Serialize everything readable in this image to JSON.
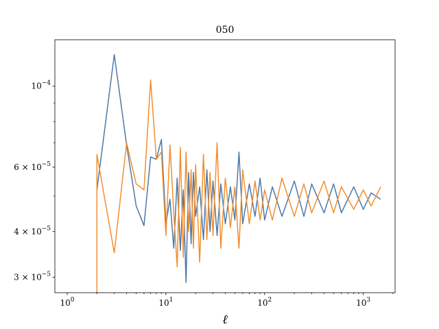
{
  "chart_data": {
    "type": "line",
    "title": "050",
    "xlabel": "ℓ",
    "ylabel": "",
    "xscale": "log",
    "yscale": "log",
    "xlim": [
      0.75,
      2100
    ],
    "ylim": [
      2.72e-05,
      0.000134
    ],
    "x_ticks": [
      {
        "value": 1,
        "label": "10",
        "exp": "0"
      },
      {
        "value": 10,
        "label": "10",
        "exp": "1"
      },
      {
        "value": 100,
        "label": "10",
        "exp": "2"
      },
      {
        "value": 1000,
        "label": "10",
        "exp": "3"
      }
    ],
    "y_ticks": [
      {
        "value": 0.0001,
        "label": "10",
        "exp": "−4"
      },
      {
        "value": 6e-05,
        "label": "6 × 10",
        "exp": "−5"
      },
      {
        "value": 4e-05,
        "label": "4 × 10",
        "exp": "−5"
      },
      {
        "value": 3e-05,
        "label": "3 × 10",
        "exp": "−5"
      }
    ],
    "series": [
      {
        "color": "#4c78a8",
        "x": [
          2,
          3,
          4,
          5,
          6,
          7,
          8,
          9,
          10,
          11,
          12,
          13,
          14,
          15,
          16,
          17,
          18,
          19,
          20,
          22,
          24,
          26,
          28,
          30,
          33,
          36,
          40,
          45,
          50,
          55,
          60,
          70,
          80,
          90,
          100,
          120,
          150,
          200,
          250,
          300,
          400,
          500,
          600,
          800,
          1000,
          1200,
          1500
        ],
        "y": [
          5.2e-05,
          0.000122,
          6.9e-05,
          4.7e-05,
          4.15e-05,
          6.4e-05,
          6.3e-05,
          7.15e-05,
          4.2e-05,
          4.9e-05,
          3.6e-05,
          5.6e-05,
          3.55e-05,
          5.2e-05,
          2.9e-05,
          5.8e-05,
          3.7e-05,
          5.8e-05,
          4.4e-05,
          5.3e-05,
          3.8e-05,
          5.9e-05,
          4e-05,
          5.5e-05,
          3.9e-05,
          5.4e-05,
          4.2e-05,
          5.3e-05,
          4.3e-05,
          6.6e-05,
          4.2e-05,
          5.4e-05,
          4.4e-05,
          5.6e-05,
          4.3e-05,
          5.3e-05,
          4.4e-05,
          5.5e-05,
          4.4e-05,
          5.4e-05,
          4.5e-05,
          5.4e-05,
          4.5e-05,
          5.3e-05,
          4.6e-05,
          5.1e-05,
          4.9e-05
        ]
      },
      {
        "color": "#f28e2b",
        "x": [
          2,
          2,
          3,
          4,
          5,
          6,
          7,
          8,
          9,
          10,
          11,
          12,
          13,
          14,
          15,
          16,
          17,
          18,
          19,
          20,
          22,
          24,
          26,
          28,
          30,
          33,
          36,
          40,
          45,
          50,
          55,
          60,
          70,
          80,
          90,
          100,
          120,
          150,
          200,
          250,
          300,
          400,
          500,
          600,
          800,
          1000,
          1200,
          1500
        ],
        "y": [
          2.72e-05,
          6.5e-05,
          3.5e-05,
          7e-05,
          5.4e-05,
          5.2e-05,
          0.000104,
          6.3e-05,
          6.6e-05,
          3.9e-05,
          6.9e-05,
          4.5e-05,
          3.2e-05,
          6.8e-05,
          3.4e-05,
          6.6e-05,
          4e-05,
          5.9e-05,
          3.6e-05,
          6.1e-05,
          3.3e-05,
          6.5e-05,
          3.8e-05,
          5.8e-05,
          3.9e-05,
          7e-05,
          3.6e-05,
          5.6e-05,
          4.1e-05,
          5.3e-05,
          3.6e-05,
          5.9e-05,
          4.2e-05,
          5.5e-05,
          4.3e-05,
          5.2e-05,
          4.3e-05,
          5.6e-05,
          4.4e-05,
          5.4e-05,
          4.5e-05,
          5.5e-05,
          4.5e-05,
          5.3e-05,
          4.6e-05,
          5.2e-05,
          4.7e-05,
          5.3e-05
        ]
      }
    ],
    "grid": false,
    "legend": "none"
  }
}
